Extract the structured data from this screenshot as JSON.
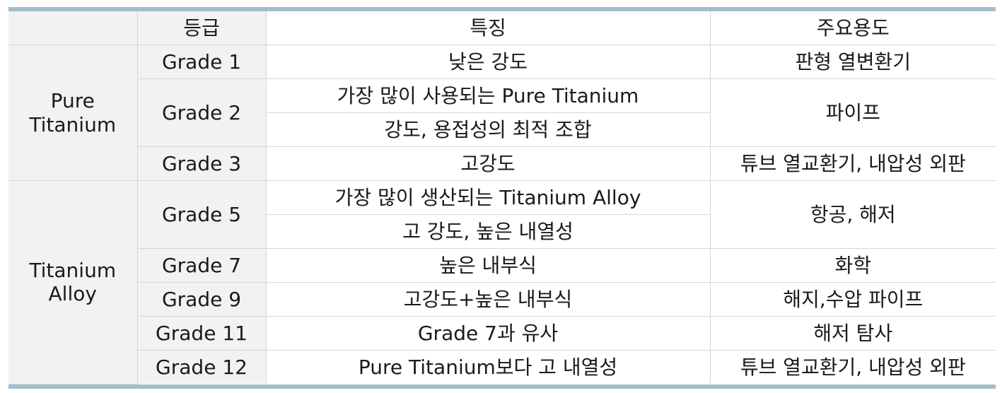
{
  "header": {
    "corner": "",
    "grade": "등급",
    "feature": "특징",
    "usage": "주요용도"
  },
  "groups": {
    "pure": "Pure\nTitanium",
    "alloy": "Titanium\nAlloy"
  },
  "rows": [
    {
      "grade": "Grade 1",
      "features": [
        "낮은 강도"
      ],
      "usage": "판형 열변환기"
    },
    {
      "grade": "Grade 2",
      "features": [
        "가장 많이 사용되는 Pure Titanium",
        "강도, 용접성의 최적 조합"
      ],
      "usage": "파이프"
    },
    {
      "grade": "Grade 3",
      "features": [
        "고강도"
      ],
      "usage": "튜브 열교환기, 내압성 외판"
    },
    {
      "grade": "Grade 5",
      "features": [
        "가장 많이 생산되는 Titanium Alloy",
        "고 강도, 높은 내열성"
      ],
      "usage": "항공, 해저"
    },
    {
      "grade": "Grade 7",
      "features": [
        "높은 내부식"
      ],
      "usage": "화학"
    },
    {
      "grade": "Grade 9",
      "features": [
        "고강도+높은 내부식"
      ],
      "usage": "해지,수압 파이프"
    },
    {
      "grade": "Grade 11",
      "features": [
        "Grade 7과 유사"
      ],
      "usage": "해저 탐사"
    },
    {
      "grade": "Grade 12",
      "features": [
        "Pure Titanium보다 고 내열성"
      ],
      "usage": "튜브 열교환기, 내압성 외판"
    }
  ]
}
